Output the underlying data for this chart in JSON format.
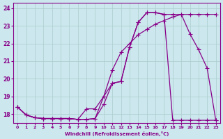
{
  "xlabel": "Windchill (Refroidissement éolien,°C)",
  "bg_color": "#cce8ee",
  "grid_color": "#aacccc",
  "line_color": "#880088",
  "xlim": [
    -0.5,
    23.5
  ],
  "ylim": [
    17.5,
    24.3
  ],
  "yticks": [
    18,
    19,
    20,
    21,
    22,
    23,
    24
  ],
  "xticks": [
    0,
    1,
    2,
    3,
    4,
    5,
    6,
    7,
    8,
    9,
    10,
    11,
    12,
    13,
    14,
    15,
    16,
    17,
    18,
    19,
    20,
    21,
    22,
    23
  ],
  "s1_x": [
    0,
    1,
    2,
    3,
    4,
    5,
    6,
    7,
    8,
    9,
    10,
    11,
    12,
    13,
    14,
    15,
    16,
    17,
    18,
    19,
    20,
    21,
    22,
    23
  ],
  "s1_y": [
    18.4,
    17.95,
    17.8,
    17.75,
    17.75,
    17.75,
    17.75,
    17.7,
    17.7,
    17.75,
    18.55,
    19.75,
    19.85,
    21.8,
    23.2,
    23.75,
    23.75,
    23.65,
    23.65,
    23.65,
    23.65,
    23.65,
    23.65,
    23.65
  ],
  "s2_x": [
    0,
    1,
    2,
    3,
    4,
    5,
    6,
    7,
    8,
    9,
    10,
    11,
    12,
    13,
    14,
    15,
    16,
    17,
    18,
    19,
    20,
    21,
    22,
    23
  ],
  "s2_y": [
    18.4,
    17.95,
    17.8,
    17.75,
    17.75,
    17.75,
    17.75,
    17.7,
    17.7,
    17.75,
    19.0,
    20.5,
    21.5,
    22.0,
    22.5,
    22.8,
    23.1,
    23.3,
    23.5,
    23.65,
    22.55,
    21.65,
    20.6,
    17.65
  ],
  "s3_x": [
    0,
    1,
    2,
    3,
    4,
    5,
    6,
    7,
    8,
    9,
    10,
    11,
    12,
    13,
    14,
    15,
    16,
    17,
    18,
    19,
    20,
    21,
    22,
    23
  ],
  "s3_y": [
    18.4,
    17.95,
    17.8,
    17.75,
    17.75,
    17.75,
    17.75,
    17.7,
    18.3,
    18.3,
    19.0,
    19.75,
    19.85,
    21.8,
    23.2,
    23.75,
    23.75,
    23.65,
    17.65,
    17.65,
    17.65,
    17.65,
    17.65,
    17.65
  ]
}
